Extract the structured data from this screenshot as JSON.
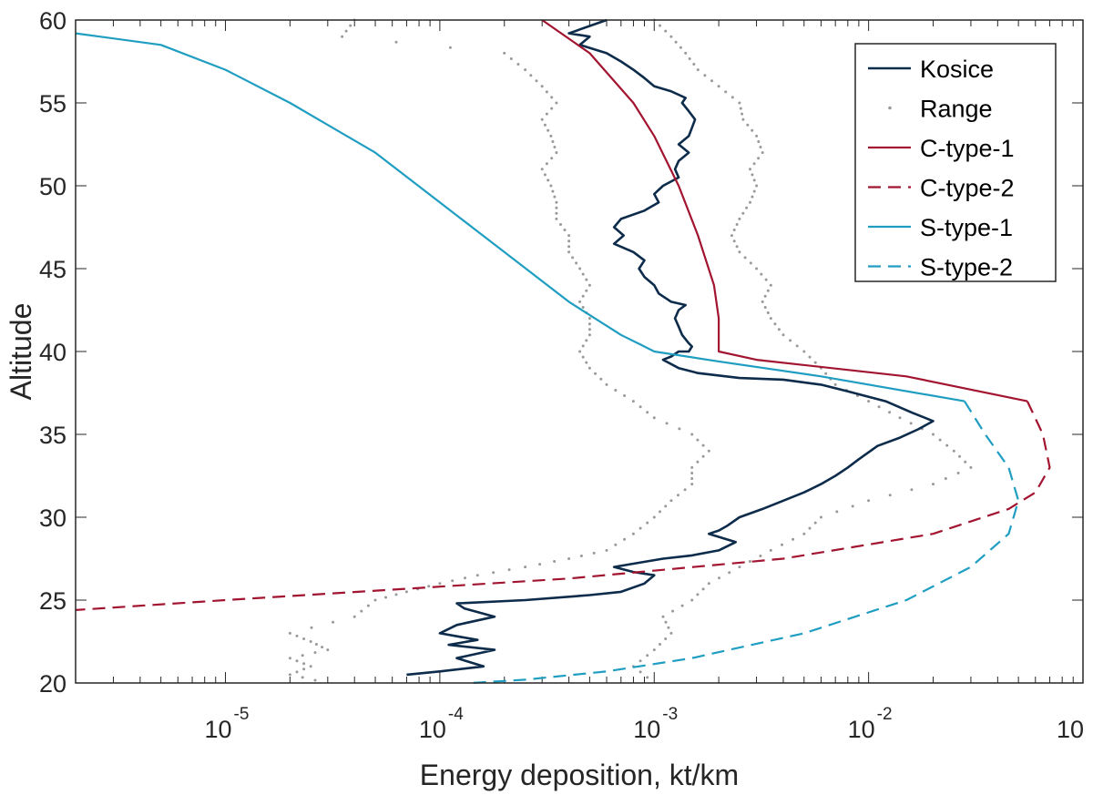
{
  "chart_data": {
    "type": "line",
    "xlabel": "Energy deposition, kt/km",
    "ylabel": "Altitude",
    "xscale": "log",
    "xlim": [
      2e-06,
      0.1
    ],
    "ylim": [
      20,
      60
    ],
    "yticks": [
      20,
      25,
      30,
      35,
      40,
      45,
      50,
      55,
      60
    ],
    "xticks": [
      {
        "value": 1e-05,
        "base": "10",
        "exp": "-5"
      },
      {
        "value": 0.0001,
        "base": "10",
        "exp": "-4"
      },
      {
        "value": 0.001,
        "base": "10",
        "exp": "-3"
      },
      {
        "value": 0.01,
        "base": "10",
        "exp": "-2"
      },
      {
        "value": 0.1,
        "base": "10",
        "exp": ""
      }
    ],
    "legend_position": "top-right",
    "series": [
      {
        "name": "Kosice",
        "color": "#0d2b4a",
        "style": "solid",
        "points": [
          [
            0.0006,
            60.0
          ],
          [
            0.0004,
            59.2
          ],
          [
            0.0005,
            59.0
          ],
          [
            0.00045,
            58.5
          ],
          [
            0.0006,
            58.0
          ],
          [
            0.0007,
            57.5
          ],
          [
            0.0008,
            57.0
          ],
          [
            0.0009,
            56.5
          ],
          [
            0.001,
            56.0
          ],
          [
            0.0012,
            55.7
          ],
          [
            0.0014,
            55.3
          ],
          [
            0.00135,
            55.0
          ],
          [
            0.00145,
            54.5
          ],
          [
            0.00155,
            54.0
          ],
          [
            0.0015,
            53.5
          ],
          [
            0.00145,
            53.0
          ],
          [
            0.0013,
            52.5
          ],
          [
            0.00145,
            52.0
          ],
          [
            0.0013,
            51.5
          ],
          [
            0.00125,
            51.0
          ],
          [
            0.0013,
            50.5
          ],
          [
            0.0011,
            50.0
          ],
          [
            0.001,
            49.5
          ],
          [
            0.00105,
            49.0
          ],
          [
            0.0009,
            48.5
          ],
          [
            0.0007,
            48.0
          ],
          [
            0.00065,
            47.5
          ],
          [
            0.00072,
            47.0
          ],
          [
            0.00065,
            46.5
          ],
          [
            0.0008,
            46.0
          ],
          [
            0.0009,
            45.5
          ],
          [
            0.00085,
            45.0
          ],
          [
            0.0009,
            44.5
          ],
          [
            0.001,
            44.0
          ],
          [
            0.00105,
            43.5
          ],
          [
            0.0012,
            43.0
          ],
          [
            0.0014,
            42.8
          ],
          [
            0.0013,
            42.5
          ],
          [
            0.00125,
            42.0
          ],
          [
            0.0013,
            41.5
          ],
          [
            0.00135,
            41.0
          ],
          [
            0.00145,
            40.5
          ],
          [
            0.0015,
            40.3
          ],
          [
            0.00145,
            40.0
          ],
          [
            0.0013,
            40.0
          ],
          [
            0.0012,
            39.7
          ],
          [
            0.0011,
            39.5
          ],
          [
            0.0013,
            39.0
          ],
          [
            0.0016,
            38.7
          ],
          [
            0.0025,
            38.4
          ],
          [
            0.004,
            38.3
          ],
          [
            0.006,
            38.0
          ],
          [
            0.008,
            37.6
          ],
          [
            0.012,
            37.0
          ],
          [
            0.016,
            36.3
          ],
          [
            0.02,
            35.8
          ],
          [
            0.017,
            35.3
          ],
          [
            0.014,
            34.8
          ],
          [
            0.011,
            34.3
          ],
          [
            0.009,
            33.5
          ],
          [
            0.008,
            33.0
          ],
          [
            0.007,
            32.5
          ],
          [
            0.006,
            32.0
          ],
          [
            0.005,
            31.5
          ],
          [
            0.004,
            31.0
          ],
          [
            0.0032,
            30.5
          ],
          [
            0.0025,
            30.0
          ],
          [
            0.0022,
            29.5
          ],
          [
            0.002,
            29.2
          ],
          [
            0.0018,
            29.0
          ],
          [
            0.0024,
            28.5
          ],
          [
            0.002,
            28.0
          ],
          [
            0.0015,
            27.7
          ],
          [
            0.0011,
            27.5
          ],
          [
            0.0008,
            27.2
          ],
          [
            0.00065,
            27.0
          ],
          [
            0.0008,
            26.7
          ],
          [
            0.001,
            26.5
          ],
          [
            0.0009,
            26.0
          ],
          [
            0.0007,
            25.5
          ],
          [
            0.0005,
            25.3
          ],
          [
            0.00025,
            25.0
          ],
          [
            0.00012,
            24.8
          ],
          [
            0.00013,
            24.5
          ],
          [
            0.00018,
            24.0
          ],
          [
            0.00012,
            23.5
          ],
          [
            0.0001,
            23.0
          ],
          [
            0.00015,
            22.6
          ],
          [
            0.00011,
            22.3
          ],
          [
            0.00018,
            22.0
          ],
          [
            0.00012,
            21.5
          ],
          [
            0.00016,
            21.0
          ],
          [
            0.0001,
            20.7
          ],
          [
            7e-05,
            20.5
          ]
        ]
      },
      {
        "name": "Range",
        "color": "#999999",
        "style": "dotted",
        "lower": [
          [
            4e-05,
            60
          ],
          [
            3.5e-05,
            59
          ],
          [
            0.0002,
            58
          ],
          [
            0.00025,
            57
          ],
          [
            0.0003,
            56
          ],
          [
            0.00035,
            55
          ],
          [
            0.0003,
            54
          ],
          [
            0.00033,
            53
          ],
          [
            0.00035,
            52
          ],
          [
            0.0003,
            51
          ],
          [
            0.00033,
            50
          ],
          [
            0.00035,
            49
          ],
          [
            0.00035,
            48
          ],
          [
            0.0004,
            47
          ],
          [
            0.0004,
            46
          ],
          [
            0.00045,
            45
          ],
          [
            0.0005,
            44
          ],
          [
            0.00045,
            43
          ],
          [
            0.0005,
            42
          ],
          [
            0.0005,
            41
          ],
          [
            0.00045,
            40
          ],
          [
            0.0005,
            39
          ],
          [
            0.0006,
            38
          ],
          [
            0.0008,
            37
          ],
          [
            0.001,
            36
          ],
          [
            0.0015,
            35
          ],
          [
            0.0018,
            34
          ],
          [
            0.0015,
            33
          ],
          [
            0.0015,
            32
          ],
          [
            0.0012,
            31
          ],
          [
            0.001,
            30
          ],
          [
            0.0008,
            29
          ],
          [
            0.0006,
            28
          ],
          [
            0.0004,
            27.5
          ],
          [
            0.00025,
            27
          ],
          [
            0.00015,
            26.5
          ],
          [
            0.0001,
            26
          ],
          [
            7e-05,
            25.5
          ],
          [
            5e-05,
            25
          ],
          [
            4e-05,
            24
          ],
          [
            2e-05,
            23
          ],
          [
            2.5e-05,
            22.5
          ],
          [
            3e-05,
            22
          ],
          [
            2e-05,
            21.5
          ],
          [
            2.5e-05,
            21
          ],
          [
            2e-05,
            20.5
          ],
          [
            3e-05,
            20
          ]
        ],
        "upper": [
          [
            0.001,
            60
          ],
          [
            0.0012,
            59
          ],
          [
            0.0014,
            58
          ],
          [
            0.0016,
            57
          ],
          [
            0.002,
            56
          ],
          [
            0.0025,
            55
          ],
          [
            0.0026,
            54
          ],
          [
            0.003,
            53
          ],
          [
            0.0032,
            52
          ],
          [
            0.0028,
            51
          ],
          [
            0.003,
            50
          ],
          [
            0.0028,
            49
          ],
          [
            0.0025,
            48
          ],
          [
            0.0023,
            47
          ],
          [
            0.0025,
            46
          ],
          [
            0.003,
            45
          ],
          [
            0.0035,
            44
          ],
          [
            0.0032,
            43
          ],
          [
            0.0035,
            42
          ],
          [
            0.004,
            41
          ],
          [
            0.005,
            40
          ],
          [
            0.006,
            39
          ],
          [
            0.007,
            38
          ],
          [
            0.01,
            37
          ],
          [
            0.014,
            36
          ],
          [
            0.02,
            35
          ],
          [
            0.025,
            34
          ],
          [
            0.03,
            33
          ],
          [
            0.02,
            32
          ],
          [
            0.01,
            31
          ],
          [
            0.006,
            30
          ],
          [
            0.005,
            29
          ],
          [
            0.0035,
            28
          ],
          [
            0.0025,
            27
          ],
          [
            0.0018,
            26
          ],
          [
            0.0015,
            25
          ],
          [
            0.0011,
            24
          ],
          [
            0.0012,
            23
          ],
          [
            0.001,
            22
          ],
          [
            0.0008,
            21
          ],
          [
            0.001,
            20
          ]
        ]
      },
      {
        "name": "C-type-1",
        "color": "#a2142f",
        "style": "solid",
        "points": [
          [
            0.0003,
            60
          ],
          [
            0.0005,
            58
          ],
          [
            0.0008,
            55
          ],
          [
            0.001,
            53
          ],
          [
            0.0013,
            50
          ],
          [
            0.0016,
            47
          ],
          [
            0.0019,
            44
          ],
          [
            0.002,
            42
          ],
          [
            0.002,
            40
          ],
          [
            0.003,
            39.5
          ],
          [
            0.015,
            38.5
          ],
          [
            0.055,
            37
          ]
        ]
      },
      {
        "name": "C-type-2",
        "color": "#a2142f",
        "style": "dashed",
        "points": [
          [
            0.055,
            37
          ],
          [
            0.065,
            35
          ],
          [
            0.07,
            33
          ],
          [
            0.06,
            31.5
          ],
          [
            0.045,
            30.5
          ],
          [
            0.02,
            29
          ],
          [
            0.004,
            27.5
          ],
          [
            0.0004,
            26.3
          ],
          [
            1e-05,
            25
          ],
          [
            2e-06,
            24.4
          ]
        ]
      },
      {
        "name": "S-type-1",
        "color": "#1f9ec2",
        "style": "solid",
        "points": [
          [
            2e-06,
            59.2
          ],
          [
            5e-06,
            58.5
          ],
          [
            1e-05,
            57
          ],
          [
            2e-05,
            55
          ],
          [
            5e-05,
            52
          ],
          [
            0.0001,
            49
          ],
          [
            0.0002,
            46
          ],
          [
            0.0004,
            43
          ],
          [
            0.0007,
            41
          ],
          [
            0.0009,
            40.3
          ],
          [
            0.001,
            40
          ],
          [
            0.002,
            39.4
          ],
          [
            0.006,
            38.5
          ],
          [
            0.028,
            37
          ]
        ]
      },
      {
        "name": "S-type-2",
        "color": "#1f9ec2",
        "style": "dashed",
        "points": [
          [
            0.028,
            37
          ],
          [
            0.035,
            35
          ],
          [
            0.045,
            33
          ],
          [
            0.05,
            31
          ],
          [
            0.045,
            29
          ],
          [
            0.03,
            27
          ],
          [
            0.015,
            25
          ],
          [
            0.005,
            23
          ],
          [
            0.0015,
            21.5
          ],
          [
            0.0006,
            20.7
          ],
          [
            0.00025,
            20.2
          ],
          [
            0.00014,
            20
          ]
        ]
      }
    ]
  }
}
